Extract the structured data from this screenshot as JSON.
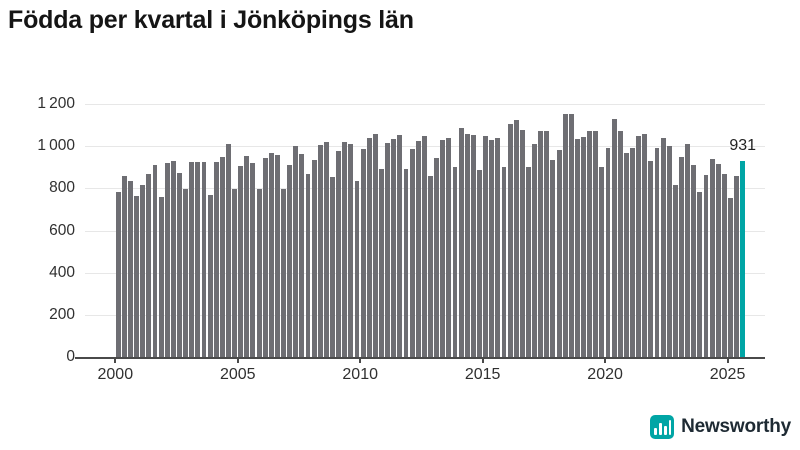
{
  "title": "Födda per kvartal i Jönköpings län",
  "chart_data": {
    "type": "bar",
    "title": "Födda per kvartal i Jönköpings län",
    "xlabel": "",
    "ylabel": "",
    "x_start": "2000 Q1",
    "x_end": "2025 Q3",
    "frequency": "quarterly",
    "values": [
      785,
      860,
      835,
      765,
      815,
      870,
      910,
      760,
      920,
      930,
      875,
      795,
      925,
      925,
      925,
      770,
      925,
      950,
      1010,
      795,
      905,
      955,
      920,
      795,
      945,
      970,
      960,
      795,
      910,
      1000,
      965,
      870,
      935,
      1005,
      1020,
      855,
      975,
      1020,
      1010,
      835,
      985,
      1040,
      1060,
      890,
      1015,
      1035,
      1055,
      890,
      985,
      1025,
      1050,
      860,
      945,
      1030,
      1040,
      900,
      1085,
      1060,
      1055,
      885,
      1050,
      1030,
      1040,
      900,
      1105,
      1125,
      1075,
      900,
      1010,
      1070,
      1070,
      935,
      980,
      1155,
      1155,
      1035,
      1045,
      1070,
      1070,
      900,
      990,
      1130,
      1070,
      970,
      990,
      1050,
      1060,
      930,
      990,
      1040,
      1000,
      815,
      950,
      1010,
      910,
      785,
      865,
      940,
      915,
      870,
      755,
      860,
      931
    ],
    "ylim": [
      0,
      1200
    ],
    "ytick_values": [
      0,
      200,
      400,
      600,
      800,
      1000,
      1200
    ],
    "ytick_labels": [
      "0",
      "200",
      "400",
      "600",
      "800",
      "1 000",
      "1 200"
    ],
    "xtick_years": [
      2000,
      2005,
      2010,
      2015,
      2020,
      2025
    ],
    "grid": true,
    "legend": "none",
    "bar_color": "#6e6e73",
    "highlight": {
      "index": 102,
      "label": "931",
      "quarter": "2025 Q3",
      "color": "#00a5a5"
    }
  },
  "branding": {
    "name": "Newsworthy",
    "icon": "bar-chart-logo",
    "accent_color": "#00a5a5"
  }
}
